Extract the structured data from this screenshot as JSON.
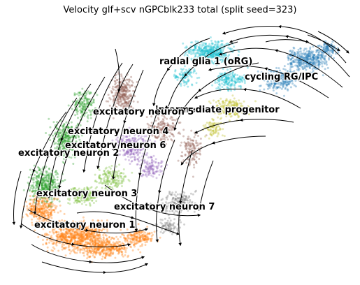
{
  "chart_data": {
    "type": "scatter",
    "subtype": "rna-velocity-embedding-stream",
    "title": "Velocity glf+scv nGPCblk233 total (split seed=323)",
    "xlabel": "",
    "ylabel": "",
    "axes_visible": false,
    "grid": false,
    "legend": "on data",
    "series": [
      {
        "name": "radial glia 1 (oRG)",
        "color": "#17becf"
      },
      {
        "name": "cycling RG/IPC",
        "color": "#1f77b4"
      },
      {
        "name": "intermediate progenitor",
        "color": "#bcbd22"
      },
      {
        "name": "excitatory neuron 5",
        "color": "#8c564b"
      },
      {
        "name": "excitatory neuron 4",
        "color": "#2ca02c"
      },
      {
        "name": "excitatory neuron 6",
        "color": "#9467bd"
      },
      {
        "name": "excitatory neuron 2",
        "color": "#2ca02c"
      },
      {
        "name": "excitatory neuron 3",
        "color": "#7fbf3f"
      },
      {
        "name": "excitatory neuron 7",
        "color": "#7f7f7f"
      },
      {
        "name": "excitatory neuron 1",
        "color": "#ff7f0e"
      }
    ],
    "labels": [
      {
        "text": "radial glia 1 (oRG)"
      },
      {
        "text": "cycling RG/IPC"
      },
      {
        "text": "intermediate progenitor"
      },
      {
        "text": "excitatory neuron 5"
      },
      {
        "text": "excitatory neuron 4"
      },
      {
        "text": "excitatory neuron 6"
      },
      {
        "text": "excitatory neuron 2"
      },
      {
        "text": "excitatory neuron 3"
      },
      {
        "text": "excitatory neuron 7"
      },
      {
        "text": "excitatory neuron 1"
      }
    ]
  }
}
